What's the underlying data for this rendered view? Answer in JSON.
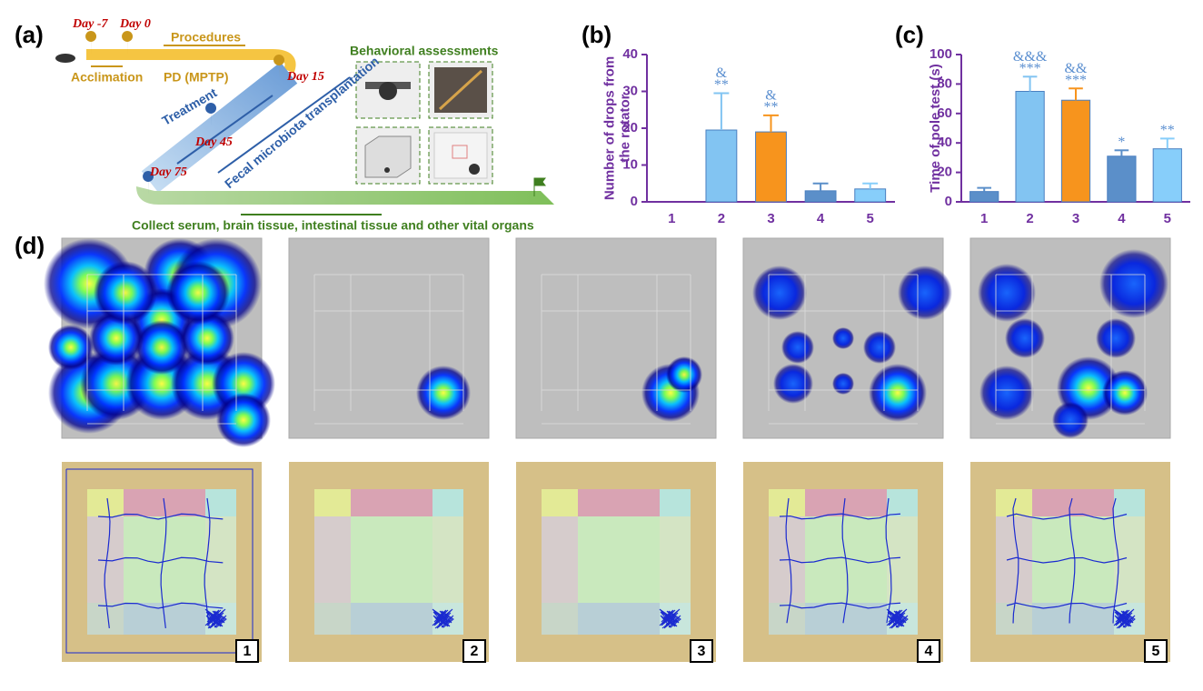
{
  "panels": {
    "a": {
      "label": "(a)",
      "day_m7": "Day -7",
      "day_0": "Day 0",
      "procedures": "Procedures",
      "acclimation": "Acclimation",
      "pd": "PD (MPTP)",
      "day_15": "Day 15",
      "treatment": "Treatment",
      "fmt": "Fecal microbiota transplantation",
      "day_45": "Day 45",
      "day_75": "Day 75",
      "behavioral": "Behavioral assessments",
      "collect": "Collect serum, brain tissue, intestinal tissue and other vital organs"
    },
    "d": {
      "label": "(d)",
      "groups": [
        "1",
        "2",
        "3",
        "4",
        "5"
      ]
    }
  },
  "chart_data": [
    {
      "type": "bar",
      "title": "(b)",
      "ylabel": [
        "Number of drops from",
        "the rotator"
      ],
      "categories": [
        "1",
        "2",
        "3",
        "4",
        "5"
      ],
      "values": [
        0,
        19.5,
        19,
        3,
        3.5
      ],
      "errors": [
        null,
        10,
        4.5,
        2,
        1.5
      ],
      "colors": [
        "#5b8fc9",
        "#82c4f2",
        "#f7941d",
        "#5b8fc9",
        "#87cefa"
      ],
      "annotations": [
        null,
        [
          "&",
          "**"
        ],
        [
          "&",
          "**"
        ],
        null,
        null
      ],
      "ylim": [
        0,
        40
      ],
      "yticks": [
        0,
        10,
        20,
        30,
        40
      ]
    },
    {
      "type": "bar",
      "title": "(c)",
      "ylabel": [
        "Time of pole test (s)"
      ],
      "categories": [
        "1",
        "2",
        "3",
        "4",
        "5"
      ],
      "values": [
        7,
        75,
        69,
        31,
        36
      ],
      "errors": [
        2.5,
        10,
        8,
        4,
        7
      ],
      "colors": [
        "#5b8fc9",
        "#82c4f2",
        "#f7941d",
        "#5b8fc9",
        "#87cefa"
      ],
      "annotations": [
        null,
        [
          "&&&",
          "***"
        ],
        [
          "&&",
          "***"
        ],
        [
          "*"
        ],
        [
          "**"
        ]
      ],
      "ylim": [
        0,
        100
      ],
      "yticks": [
        0,
        20,
        40,
        60,
        80,
        100
      ]
    }
  ]
}
